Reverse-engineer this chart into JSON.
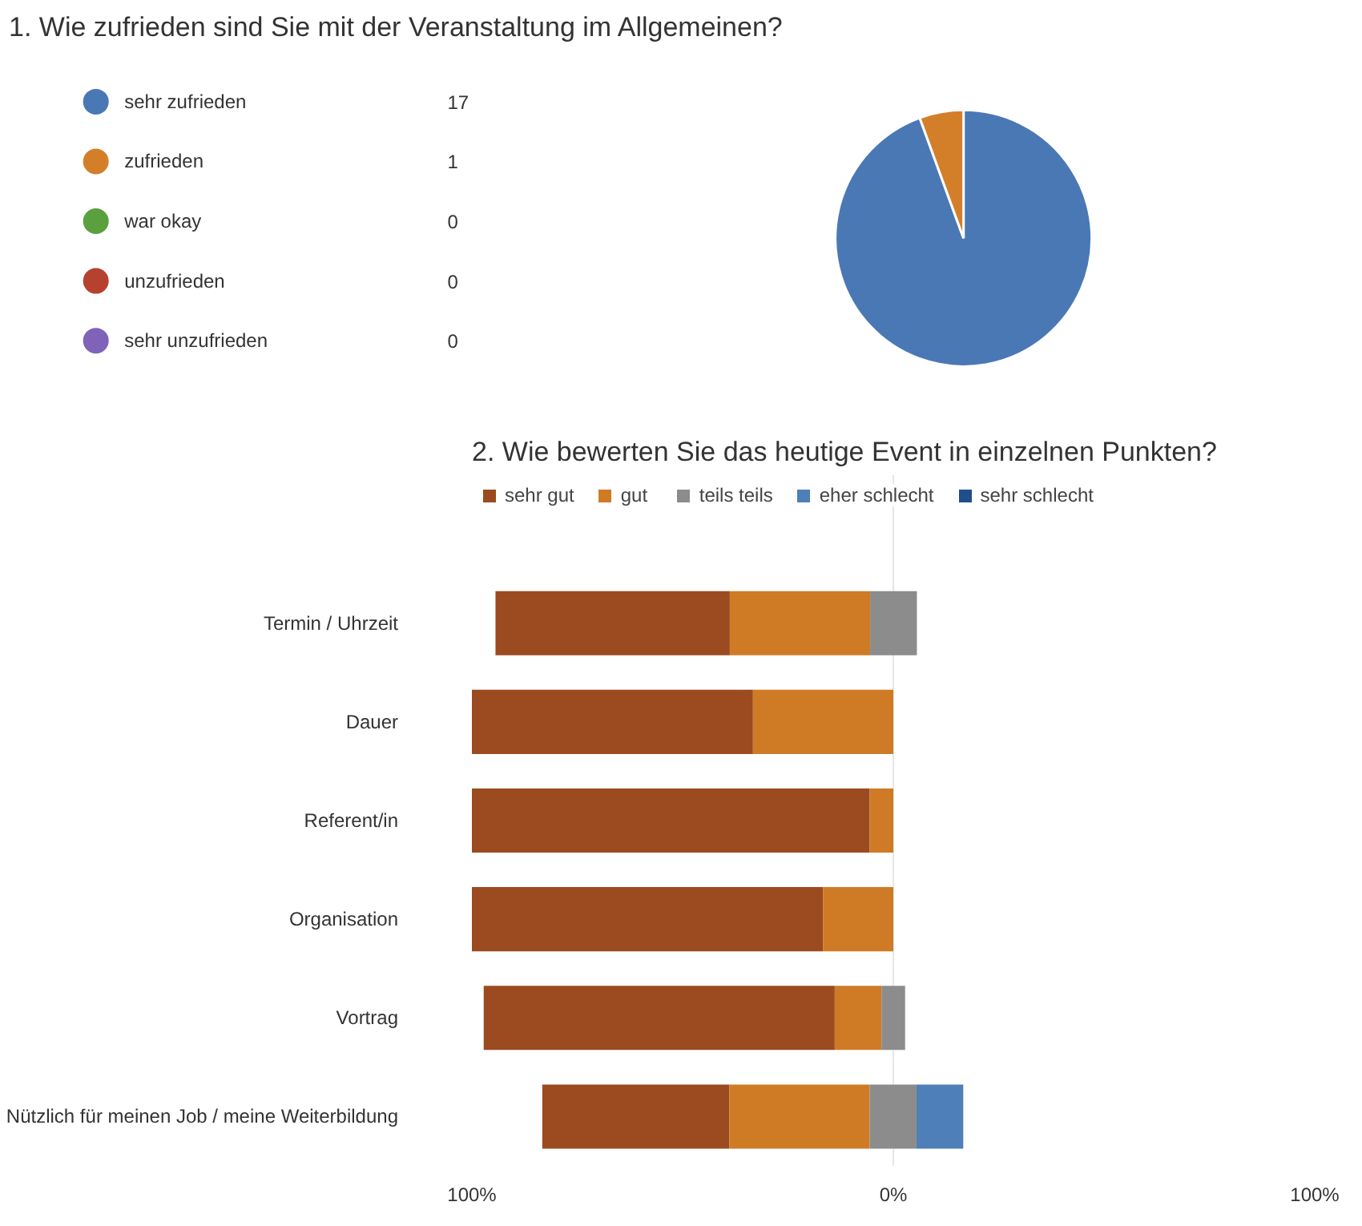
{
  "chart_data": [
    {
      "type": "pie",
      "title": "1.  Wie zufrieden sind Sie mit der Veranstaltung im Allgemeinen?",
      "categories": [
        "sehr zufrieden",
        "zufrieden",
        "war okay",
        "unzufrieden",
        "sehr unzufrieden"
      ],
      "values": [
        17,
        1,
        0,
        0,
        0
      ],
      "colors": [
        "#4a78b5",
        "#d37f2a",
        "#5aa03f",
        "#b5422f",
        "#7f63b8"
      ],
      "data_labels": true,
      "value_labels": [
        "17",
        "1",
        "0",
        "0",
        "0"
      ],
      "legend": "left"
    },
    {
      "type": "bar",
      "title": "2.  Wie bewerten Sie das heutige Event in einzelnen Punkten?",
      "orientation": "horizontal",
      "categories": [
        "Termin / Uhrzeit",
        "Dauer",
        "Referent/in",
        "Organisation",
        "Vortrag",
        "Nützlich für meinen Job / meine Weiterbildung"
      ],
      "series": [
        {
          "name": "sehr gut",
          "color": "#9c4a1f",
          "base": [
            -94.4,
            -100,
            -100,
            -100,
            -97.2,
            -83.3
          ],
          "values": [
            55.6,
            66.7,
            94.4,
            83.3,
            83.3,
            44.4
          ]
        },
        {
          "name": "gut",
          "color": "#cf7b26",
          "base": [
            -38.8,
            -33.3,
            -5.6,
            -16.7,
            -13.9,
            -38.9
          ],
          "values": [
            33.3,
            33.3,
            5.6,
            16.7,
            11.1,
            33.3
          ]
        },
        {
          "name": "teils teils",
          "color": "#8c8c8c",
          "base": [
            -5.5,
            null,
            null,
            null,
            -2.8,
            -5.6
          ],
          "values": [
            11.1,
            0,
            0,
            0,
            5.6,
            11.1
          ]
        },
        {
          "name": "eher schlecht",
          "color": "#4f7fb8",
          "base": [
            null,
            null,
            null,
            null,
            null,
            5.5
          ],
          "values": [
            0,
            0,
            0,
            0,
            0,
            11.1
          ]
        },
        {
          "name": "sehr schlecht",
          "color": "#1f4e8c",
          "base": [
            null,
            null,
            null,
            null,
            null,
            null
          ],
          "values": [
            0,
            0,
            0,
            0,
            0,
            0
          ]
        }
      ],
      "xlim": [
        -100,
        100
      ],
      "xticks": [
        {
          "value": -100,
          "label": "100%"
        },
        {
          "value": 0,
          "label": "0%"
        },
        {
          "value": 100,
          "label": "100%"
        }
      ],
      "grid": "x",
      "legend": "top left"
    }
  ]
}
